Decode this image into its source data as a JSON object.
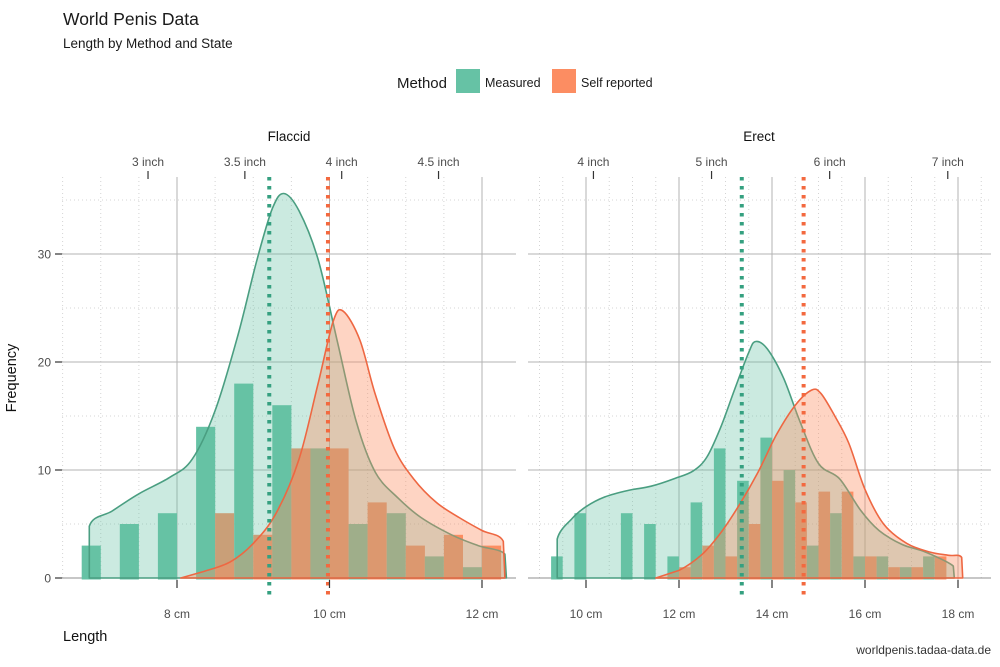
{
  "title": "World Penis Data",
  "subtitle": "Length by Method and State",
  "xlabel": "Length",
  "ylabel": "Frequency",
  "caption": "worldpenis.tadaa-data.de",
  "legend": {
    "title": "Method",
    "items": [
      {
        "label": "Measured",
        "color": "#66C2A5"
      },
      {
        "label": "Self reported",
        "color": "#FC8D62"
      }
    ]
  },
  "colors": {
    "measured_fill": "#66C2A5",
    "self_fill": "#FC8D62",
    "measured_line": "#4a9e81",
    "self_line": "#ee6742",
    "measured_mean": "#35a080",
    "self_mean": "#f3693f",
    "grid_major": "#b3b3b3",
    "grid_zero": "#8f8f8f",
    "grid_minor": "#d4d4d4",
    "tick_mark": "#333333"
  },
  "chart_data": [
    {
      "facet": "Flaccid",
      "type": "bar",
      "subtype": "dodged histogram with density overlay and mean vlines",
      "x_unit": "cm",
      "xlim": [
        6.5,
        12.45
      ],
      "ylim": [
        0,
        37.2
      ],
      "y_major": [
        0,
        10,
        20,
        30
      ],
      "y_minor": [
        5,
        15,
        25,
        35
      ],
      "bin_width_cm": 0.5,
      "bin_centers": [
        7.0,
        7.5,
        8.0,
        8.5,
        9.0,
        9.5,
        10.0,
        10.5,
        11.0,
        11.5,
        12.0
      ],
      "bottom_ticks": [
        {
          "cm": 8,
          "label": "8 cm"
        },
        {
          "cm": 10,
          "label": "10 cm"
        },
        {
          "cm": 12,
          "label": "12 cm"
        }
      ],
      "top_ticks": [
        {
          "cm": 7.62,
          "label": "3 inch"
        },
        {
          "cm": 8.89,
          "label": "3.5 inch"
        },
        {
          "cm": 10.16,
          "label": "4 inch"
        },
        {
          "cm": 11.43,
          "label": "4.5 inch"
        }
      ],
      "series": [
        {
          "name": "Measured",
          "bar_values": [
            3,
            5,
            6,
            14,
            18,
            16,
            12,
            5,
            6,
            2,
            1
          ],
          "mean_cm": 9.21,
          "density": [
            [
              6.85,
              0
            ],
            [
              6.85,
              4.8
            ],
            [
              7.15,
              6.2
            ],
            [
              7.5,
              7.8
            ],
            [
              7.9,
              9.3
            ],
            [
              8.2,
              11
            ],
            [
              8.5,
              15.5
            ],
            [
              8.8,
              22.5
            ],
            [
              9.05,
              29.5
            ],
            [
              9.25,
              34.2
            ],
            [
              9.4,
              35.6
            ],
            [
              9.6,
              34
            ],
            [
              9.85,
              29.5
            ],
            [
              10.1,
              22
            ],
            [
              10.35,
              14.5
            ],
            [
              10.6,
              9.8
            ],
            [
              10.9,
              7.4
            ],
            [
              11.2,
              5.6
            ],
            [
              11.6,
              4
            ],
            [
              11.95,
              3
            ],
            [
              12.3,
              2.2
            ],
            [
              12.32,
              0
            ]
          ]
        },
        {
          "name": "Self reported",
          "bar_values": [
            0,
            0,
            0,
            6,
            4,
            12,
            12,
            7,
            3,
            4,
            3
          ],
          "mean_cm": 9.98,
          "density": [
            [
              8.05,
              0
            ],
            [
              8.35,
              0.6
            ],
            [
              8.7,
              1.5
            ],
            [
              9.0,
              3.2
            ],
            [
              9.3,
              6
            ],
            [
              9.6,
              11
            ],
            [
              9.85,
              18
            ],
            [
              10.05,
              23.8
            ],
            [
              10.18,
              24.7
            ],
            [
              10.4,
              22
            ],
            [
              10.6,
              17
            ],
            [
              10.85,
              12
            ],
            [
              11.1,
              9.2
            ],
            [
              11.4,
              7
            ],
            [
              11.7,
              5.6
            ],
            [
              12.0,
              4.4
            ],
            [
              12.28,
              3.4
            ],
            [
              12.3,
              0
            ]
          ]
        }
      ]
    },
    {
      "facet": "Erect",
      "type": "bar",
      "subtype": "dodged histogram with density overlay and mean vlines",
      "x_unit": "cm",
      "xlim": [
        8.75,
        18.7
      ],
      "ylim": [
        0,
        37.2
      ],
      "y_major": [
        0,
        10,
        20,
        30
      ],
      "y_minor": [
        5,
        15,
        25,
        35
      ],
      "bin_width_cm": 0.5,
      "bin_centers": [
        9.5,
        10.0,
        10.5,
        11.0,
        11.5,
        12.0,
        12.5,
        13.0,
        13.5,
        14.0,
        14.5,
        15.0,
        15.5,
        16.0,
        16.5,
        17.0,
        17.5
      ],
      "bottom_ticks": [
        {
          "cm": 10,
          "label": "10 cm"
        },
        {
          "cm": 12,
          "label": "12 cm"
        },
        {
          "cm": 14,
          "label": "14 cm"
        },
        {
          "cm": 16,
          "label": "16 cm"
        },
        {
          "cm": 18,
          "label": "18 cm"
        }
      ],
      "top_ticks": [
        {
          "cm": 10.16,
          "label": "4 inch"
        },
        {
          "cm": 12.7,
          "label": "5 inch"
        },
        {
          "cm": 15.24,
          "label": "6 inch"
        },
        {
          "cm": 17.78,
          "label": "7 inch"
        }
      ],
      "series": [
        {
          "name": "Measured",
          "bar_values": [
            2,
            6,
            0,
            6,
            5,
            2,
            7,
            12,
            9,
            13,
            10,
            3,
            6,
            2,
            2,
            1,
            2
          ],
          "mean_cm": 13.35,
          "density": [
            [
              9.38,
              0
            ],
            [
              9.38,
              3.6
            ],
            [
              9.7,
              5.5
            ],
            [
              10.0,
              6.6
            ],
            [
              10.4,
              7.5
            ],
            [
              10.9,
              8.1
            ],
            [
              11.4,
              8.5
            ],
            [
              11.9,
              9.2
            ],
            [
              12.3,
              9.9
            ],
            [
              12.6,
              11.2
            ],
            [
              12.9,
              14
            ],
            [
              13.2,
              17.5
            ],
            [
              13.5,
              20.9
            ],
            [
              13.65,
              21.9
            ],
            [
              13.9,
              21.2
            ],
            [
              14.25,
              18.5
            ],
            [
              14.6,
              14.5
            ],
            [
              15.0,
              10.6
            ],
            [
              15.45,
              9.2
            ],
            [
              15.9,
              6.3
            ],
            [
              16.3,
              4.4
            ],
            [
              16.8,
              3.1
            ],
            [
              17.3,
              2.4
            ],
            [
              17.9,
              1.1
            ],
            [
              17.92,
              0
            ]
          ]
        },
        {
          "name": "Self reported",
          "bar_values": [
            0,
            0,
            0,
            0,
            0,
            1,
            3,
            2,
            5,
            9,
            7,
            8,
            8,
            2,
            1,
            1,
            2
          ],
          "mean_cm": 14.68,
          "density": [
            [
              11.5,
              0
            ],
            [
              12.0,
              0.7
            ],
            [
              12.5,
              2.2
            ],
            [
              12.9,
              4.2
            ],
            [
              13.3,
              6.8
            ],
            [
              13.7,
              9.8
            ],
            [
              14.1,
              13.3
            ],
            [
              14.5,
              16
            ],
            [
              14.85,
              17.4
            ],
            [
              15.05,
              17.1
            ],
            [
              15.35,
              15
            ],
            [
              15.65,
              12.5
            ],
            [
              16.0,
              8.2
            ],
            [
              16.4,
              5
            ],
            [
              16.9,
              3.2
            ],
            [
              17.4,
              2.4
            ],
            [
              17.8,
              2.1
            ],
            [
              18.08,
              1.9
            ],
            [
              18.1,
              0
            ]
          ]
        }
      ]
    }
  ]
}
